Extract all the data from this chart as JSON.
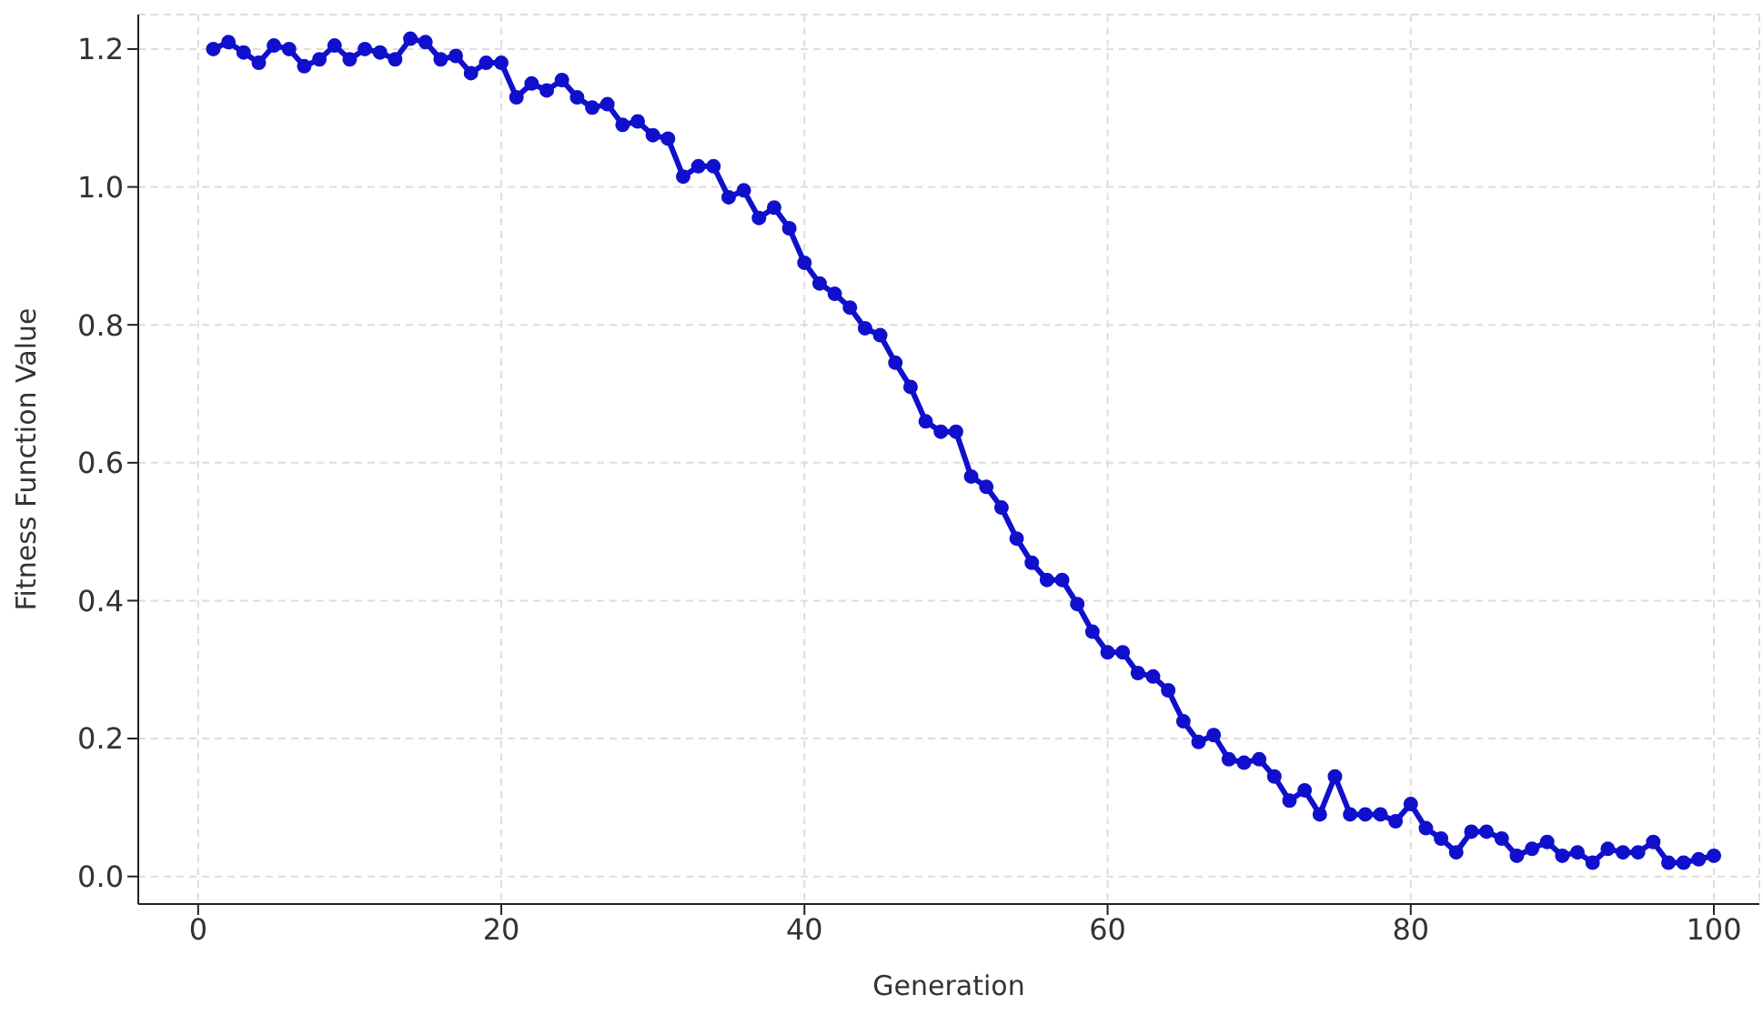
{
  "chart_data": {
    "type": "line",
    "xlabel": "Generation",
    "ylabel": "Fitness Function Value",
    "x": [
      1,
      2,
      3,
      4,
      5,
      6,
      7,
      8,
      9,
      10,
      11,
      12,
      13,
      14,
      15,
      16,
      17,
      18,
      19,
      20,
      21,
      22,
      23,
      24,
      25,
      26,
      27,
      28,
      29,
      30,
      31,
      32,
      33,
      34,
      35,
      36,
      37,
      38,
      39,
      40,
      41,
      42,
      43,
      44,
      45,
      46,
      47,
      48,
      49,
      50,
      51,
      52,
      53,
      54,
      55,
      56,
      57,
      58,
      59,
      60,
      61,
      62,
      63,
      64,
      65,
      66,
      67,
      68,
      69,
      70,
      71,
      72,
      73,
      74,
      75,
      76,
      77,
      78,
      79,
      80,
      81,
      82,
      83,
      84,
      85,
      86,
      87,
      88,
      89,
      90,
      91,
      92,
      93,
      94,
      95,
      96,
      97,
      98,
      99,
      100
    ],
    "series": [
      {
        "color": "#1010cc",
        "values": [
          1.2,
          1.21,
          1.195,
          1.18,
          1.205,
          1.2,
          1.175,
          1.185,
          1.205,
          1.185,
          1.2,
          1.195,
          1.185,
          1.215,
          1.21,
          1.185,
          1.19,
          1.165,
          1.18,
          1.18,
          1.13,
          1.15,
          1.14,
          1.155,
          1.13,
          1.115,
          1.12,
          1.09,
          1.095,
          1.075,
          1.07,
          1.015,
          1.03,
          1.03,
          0.985,
          0.995,
          0.955,
          0.97,
          0.94,
          0.89,
          0.86,
          0.845,
          0.825,
          0.795,
          0.785,
          0.745,
          0.71,
          0.66,
          0.645,
          0.645,
          0.58,
          0.565,
          0.535,
          0.49,
          0.455,
          0.43,
          0.43,
          0.395,
          0.355,
          0.325,
          0.325,
          0.295,
          0.29,
          0.27,
          0.225,
          0.195,
          0.205,
          0.17,
          0.165,
          0.17,
          0.145,
          0.11,
          0.125,
          0.09,
          0.145,
          0.09,
          0.09,
          0.09,
          0.08,
          0.105,
          0.07,
          0.055,
          0.035,
          0.065,
          0.065,
          0.055,
          0.03,
          0.04,
          0.05,
          0.03,
          0.035,
          0.02,
          0.04,
          0.035,
          0.035,
          0.05,
          0.02,
          0.02,
          0.025,
          0.03
        ]
      }
    ],
    "xlim": [
      -3.95,
      103
    ],
    "xticks": [
      0,
      20,
      40,
      60,
      80,
      100
    ],
    "ylim": [
      -0.04,
      1.25
    ],
    "yticks": [
      {
        "value": 0,
        "label": "0.0"
      },
      {
        "value": 0.2,
        "label": "0.2"
      },
      {
        "value": 0.4,
        "label": "0.4"
      },
      {
        "value": 0.6,
        "label": "0.6"
      },
      {
        "value": 0.8,
        "label": "0.8"
      },
      {
        "value": 1,
        "label": "1.0"
      },
      {
        "value": 1.2,
        "label": "1.2"
      }
    ],
    "grid": true,
    "marker": "circle",
    "line_style": "solid"
  }
}
